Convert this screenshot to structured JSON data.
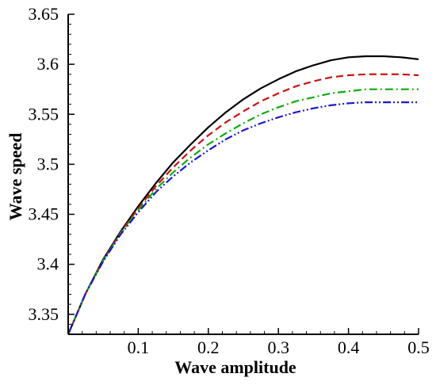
{
  "chart_data": {
    "type": "line",
    "title": "",
    "xlabel": "Wave amplitude",
    "ylabel": "Wave speed",
    "xlim": [
      0.0,
      0.5
    ],
    "ylim": [
      3.33,
      3.65
    ],
    "xticks": [
      0.1,
      0.2,
      0.3,
      0.4,
      0.5
    ],
    "xtick_labels": [
      "0.1",
      "0.2",
      "0.3",
      "0.4",
      "0.5"
    ],
    "yticks": [
      3.35,
      3.4,
      3.45,
      3.5,
      3.55,
      3.6,
      3.65
    ],
    "ytick_labels": [
      "3.35",
      "3.4",
      "3.45",
      "3.5",
      "3.55",
      "3.6",
      "3.65"
    ],
    "grid": false,
    "legend": "none",
    "x": [
      0.0,
      0.025,
      0.05,
      0.075,
      0.1,
      0.125,
      0.15,
      0.175,
      0.2,
      0.225,
      0.25,
      0.275,
      0.3,
      0.325,
      0.35,
      0.375,
      0.4,
      0.425,
      0.45,
      0.475,
      0.5
    ],
    "series": [
      {
        "color": "#000000",
        "dash": "solid",
        "values": [
          3.33,
          3.371,
          3.405,
          3.433,
          3.458,
          3.481,
          3.502,
          3.52,
          3.537,
          3.552,
          3.565,
          3.576,
          3.585,
          3.593,
          3.599,
          3.604,
          3.607,
          3.608,
          3.608,
          3.607,
          3.605
        ]
      },
      {
        "color": "#cc1111",
        "dash": "dashed",
        "values": [
          3.33,
          3.371,
          3.404,
          3.432,
          3.456,
          3.478,
          3.497,
          3.514,
          3.529,
          3.542,
          3.553,
          3.563,
          3.571,
          3.578,
          3.583,
          3.587,
          3.589,
          3.59,
          3.59,
          3.59,
          3.589
        ]
      },
      {
        "color": "#11aa11",
        "dash": "dashdot",
        "values": [
          3.33,
          3.371,
          3.404,
          3.431,
          3.454,
          3.475,
          3.492,
          3.507,
          3.52,
          3.531,
          3.541,
          3.55,
          3.557,
          3.563,
          3.567,
          3.571,
          3.573,
          3.575,
          3.575,
          3.575,
          3.575
        ]
      },
      {
        "color": "#1a1acc",
        "dash": "dashdotdot",
        "values": [
          3.33,
          3.371,
          3.403,
          3.43,
          3.452,
          3.472,
          3.488,
          3.502,
          3.514,
          3.525,
          3.534,
          3.541,
          3.547,
          3.552,
          3.556,
          3.559,
          3.561,
          3.562,
          3.562,
          3.562,
          3.562
        ]
      }
    ]
  }
}
